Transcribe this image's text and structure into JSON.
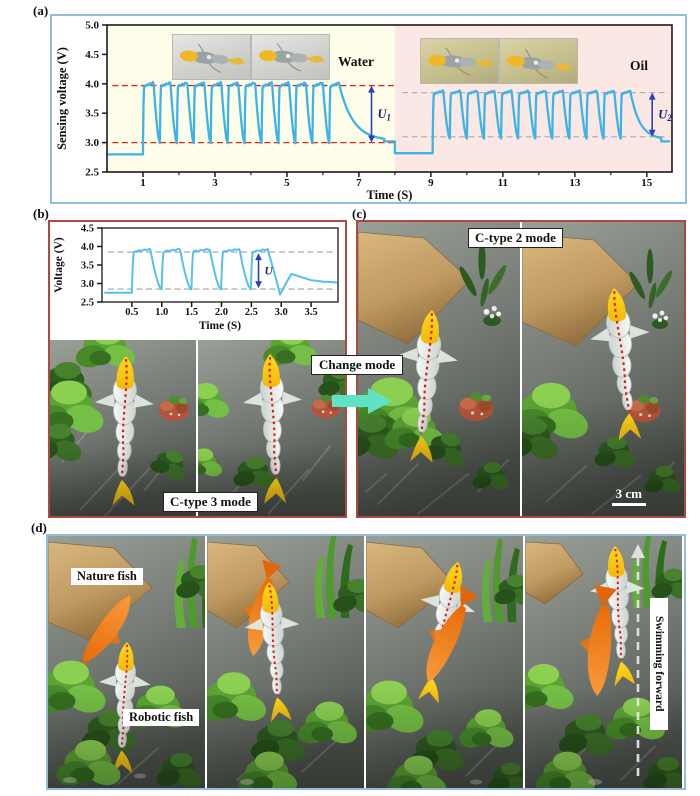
{
  "panels": {
    "a": "(a)",
    "b": "(b)",
    "c": "(c)",
    "d": "(d)"
  },
  "panel_a": {
    "water_label": "Water",
    "oil_label": "Oil"
  },
  "panel_b": {
    "mode_label": "C-type 3 mode"
  },
  "panel_c": {
    "mode_label": "C-type 2 mode",
    "scale_label": "3 cm"
  },
  "change_mode": {
    "label": "Change mode",
    "arrow_color": "#5fe3c4"
  },
  "panel_d": {
    "nature_label": "Nature fish",
    "robotic_label": "Robotic fish",
    "direction_label": "Swimming forward"
  },
  "chart_data": [
    {
      "id": "panel-a",
      "type": "line",
      "title": "",
      "xlabel": "Time (S)",
      "ylabel": "Sensing voltage (V)",
      "xlim": [
        0,
        15.7
      ],
      "ylim": [
        2.5,
        5.0
      ],
      "xticks": [
        {
          "label": "1",
          "v": 1
        },
        {
          "label": "3",
          "v": 3
        },
        {
          "label": "5",
          "v": 5
        },
        {
          "label": "7",
          "v": 7
        },
        {
          "label": "9",
          "v": 9
        },
        {
          "label": "11",
          "v": 11
        },
        {
          "label": "13",
          "v": 13
        },
        {
          "label": "15",
          "v": 15
        }
      ],
      "minor_xticks": [
        2,
        4,
        6,
        8,
        10,
        12,
        14
      ],
      "yticks": [
        {
          "label": "2.5",
          "v": 2.5
        },
        {
          "label": "3.0",
          "v": 3.0
        },
        {
          "label": "3.5",
          "v": 3.5
        },
        {
          "label": "4.0",
          "v": 4.0
        },
        {
          "label": "4.5",
          "v": 4.5
        },
        {
          "label": "5.0",
          "v": 5.0
        }
      ],
      "grid": false,
      "regions": [
        {
          "label": "Water",
          "x0": 0,
          "x1": 8,
          "bg": "#fdfdea"
        },
        {
          "label": "Oil",
          "x0": 8,
          "x1": 15.7,
          "bg": "#fbe7e4"
        }
      ],
      "ref_lines": [
        {
          "y": 3.97,
          "x0": 0.15,
          "x1": 8,
          "color": "#d42a1e"
        },
        {
          "y": 3.0,
          "x0": 0.15,
          "x1": 8,
          "color": "#d42a1e"
        },
        {
          "y": 3.85,
          "x0": 8.2,
          "x1": 15.6,
          "color": "#b3b3b3"
        },
        {
          "y": 3.1,
          "x0": 8.2,
          "x1": 15.6,
          "color": "#b3b3b3"
        }
      ],
      "arrows": [
        {
          "label": "U",
          "sub": "1",
          "x": 7.35,
          "y0": 3.0,
          "y1": 3.97
        },
        {
          "label": "U",
          "sub": "2",
          "x": 15.15,
          "y0": 3.1,
          "y1": 3.85
        }
      ],
      "series": [
        {
          "name": "sensing-voltage",
          "color": "#3fb3e6",
          "segments": [
            {
              "kind": "flat",
              "t0": 0.05,
              "t1": 1.0,
              "v": 2.8
            },
            {
              "kind": "cycles",
              "t0": 1.0,
              "t1": 6.45,
              "n": 11,
              "endTop": true,
              "high": 4.02,
              "low": 2.99
            },
            {
              "kind": "decay",
              "t0": 6.45,
              "t1": 7.7,
              "from": 4.0,
              "to": 3.03
            },
            {
              "kind": "flat",
              "t0": 7.7,
              "t1": 8.0,
              "v": 3.02
            },
            {
              "kind": "flat",
              "t0": 8.0,
              "t1": 9.05,
              "v": 2.82
            },
            {
              "kind": "cycles",
              "t0": 9.05,
              "t1": 14.55,
              "n": 11,
              "endTop": true,
              "high": 3.88,
              "low": 3.07
            },
            {
              "kind": "decay",
              "t0": 14.55,
              "t1": 15.4,
              "from": 3.85,
              "to": 3.05
            },
            {
              "kind": "flat",
              "t0": 15.4,
              "t1": 15.62,
              "v": 3.02
            }
          ]
        }
      ]
    },
    {
      "id": "panel-b",
      "type": "line",
      "title": "",
      "xlabel": "Time (S)",
      "ylabel": "Voltage (V)",
      "xlim": [
        0,
        3.95
      ],
      "ylim": [
        2.5,
        4.5
      ],
      "xticks": [
        {
          "label": "0.5",
          "v": 0.5
        },
        {
          "label": "1.0",
          "v": 1.0
        },
        {
          "label": "1.5",
          "v": 1.5
        },
        {
          "label": "2.0",
          "v": 2.0
        },
        {
          "label": "2.5",
          "v": 2.5
        },
        {
          "label": "3.0",
          "v": 3.0
        },
        {
          "label": "3.5",
          "v": 3.5
        }
      ],
      "minor_xticks": [],
      "yticks": [
        {
          "label": "2.5",
          "v": 2.5
        },
        {
          "label": "3.0",
          "v": 3.0
        },
        {
          "label": "3.5",
          "v": 3.5
        },
        {
          "label": "4.0",
          "v": 4.0
        },
        {
          "label": "4.5",
          "v": 4.5
        }
      ],
      "grid": false,
      "regions": [],
      "ref_lines": [
        {
          "y": 3.85,
          "x0": 0.1,
          "x1": 3.9,
          "color": "#b3b3b3"
        },
        {
          "y": 2.85,
          "x0": 0.1,
          "x1": 3.9,
          "color": "#b3b3b3"
        }
      ],
      "arrows": [
        {
          "label": "U",
          "sub": "",
          "x": 2.62,
          "y0": 2.87,
          "y1": 3.82
        }
      ],
      "series": [
        {
          "name": "voltage",
          "color": "#56c2ec",
          "segments": [
            {
              "kind": "flat",
              "t0": 0.05,
              "t1": 0.5,
              "v": 2.75
            },
            {
              "kind": "cycles",
              "t0": 0.5,
              "t1": 2.78,
              "n": 4,
              "endTop": true,
              "high": 3.93,
              "low": 2.84
            },
            {
              "kind": "points",
              "pts": [
                [
                  2.78,
                  3.88
                ],
                [
                  2.9,
                  3.2
                ],
                [
                  2.98,
                  2.7
                ],
                [
                  3.06,
                  2.95
                ],
                [
                  3.17,
                  3.26
                ],
                [
                  3.32,
                  3.18
                ],
                [
                  3.5,
                  3.09
                ],
                [
                  3.7,
                  3.05
                ],
                [
                  3.92,
                  3.03
                ]
              ]
            }
          ]
        }
      ]
    }
  ]
}
